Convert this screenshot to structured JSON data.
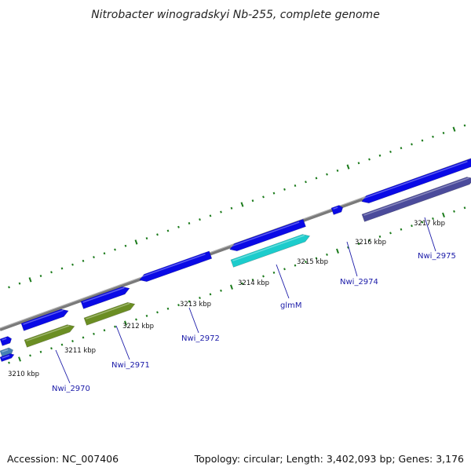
{
  "title": "Nitrobacter winogradskyi Nb-255, complete genome",
  "footer": {
    "accession": "Accession: NC_007406",
    "summary": "Topology: circular; Length: 3,402,093 bp; Genes: 3,176"
  },
  "colors": {
    "backbone": "#8c8c8c",
    "cds_forward": "#0a0ae6",
    "cds_reverse_olive": "#6b8e23",
    "cds_reverse_cyan": "#1ccccc",
    "cds_reverse_slate": "#4b4b9b",
    "cds_reverse_steel": "#4682b4",
    "tick": "#1a7a1a",
    "gene_label": "#1a1aa8"
  },
  "tick_labels": [
    "3210 kbp",
    "3211 kbp",
    "3212 kbp",
    "3213 kbp",
    "3214 kbp",
    "3215 kbp",
    "3216 kbp",
    "3217 kbp"
  ],
  "gene_labels": [
    "Nwi_2970",
    "Nwi_2971",
    "Nwi_2972",
    "glmM",
    "Nwi_2974",
    "Nwi_2975"
  ]
}
